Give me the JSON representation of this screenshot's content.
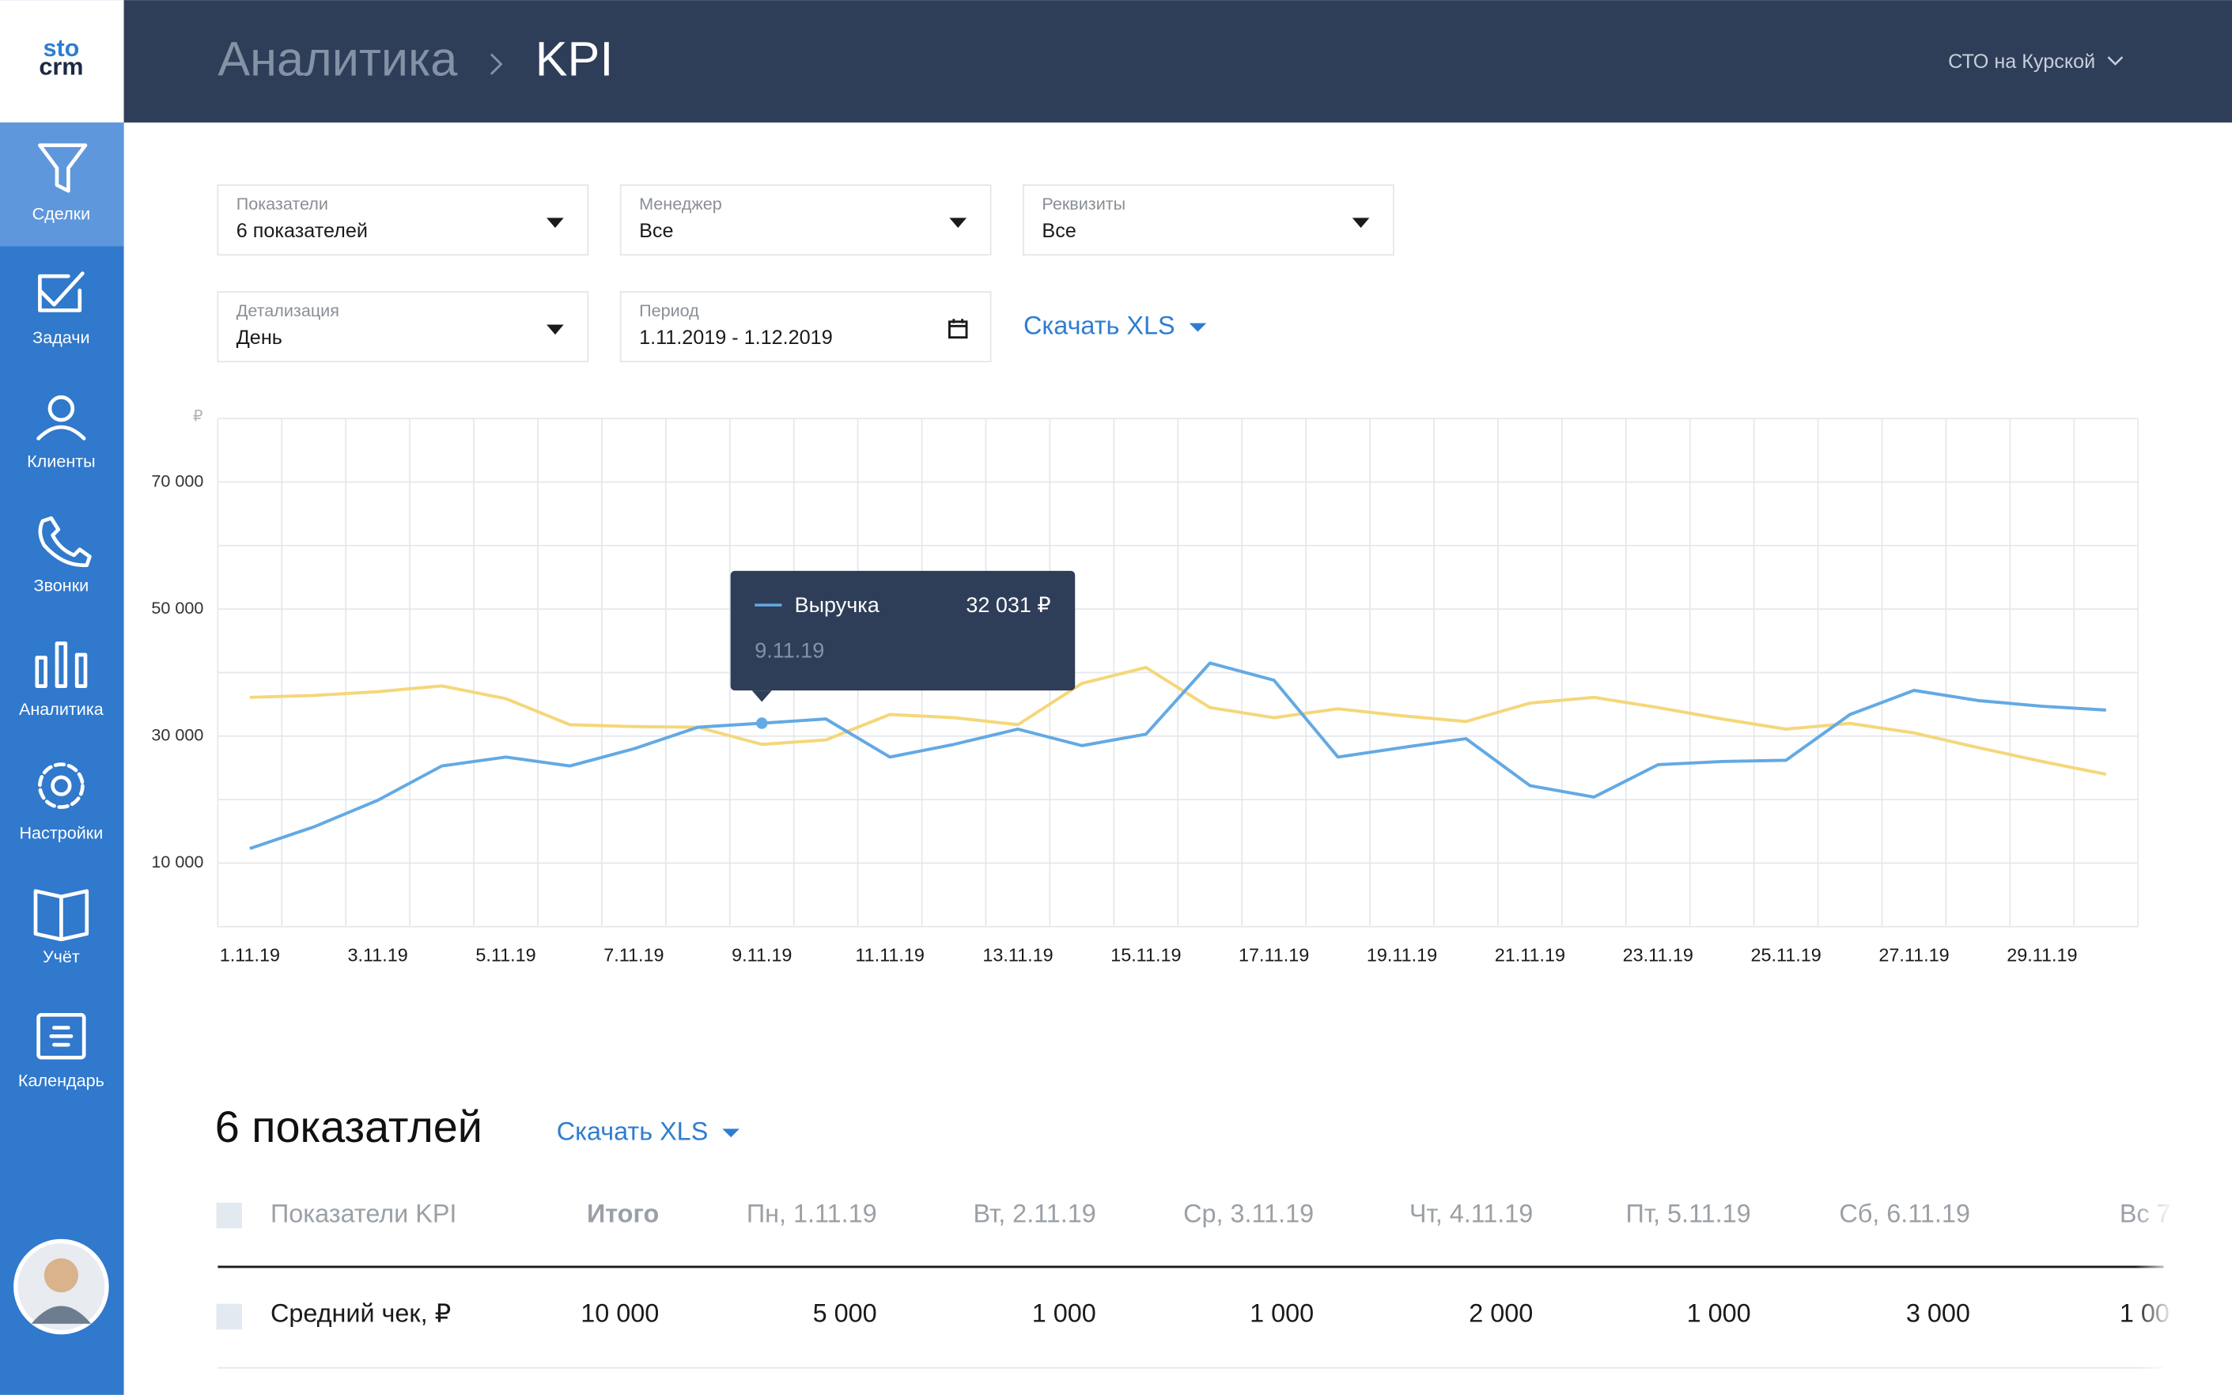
{
  "logo": {
    "line1": "sto",
    "line2": "crm"
  },
  "nav": [
    "Сделки",
    "Задачи",
    "Клиенты",
    "Звонки",
    "Аналитика",
    "Настройки",
    "Учёт",
    "Календарь"
  ],
  "header": {
    "breadcrumb": "Аналитика",
    "title": "KPI",
    "company": "СТО на Курской"
  },
  "filters": [
    {
      "label": "Показатели",
      "value": "6 показателей"
    },
    {
      "label": "Менеджер",
      "value": "Все"
    },
    {
      "label": "Реквизиты",
      "value": "Все"
    },
    {
      "label": "Детализация",
      "value": "День"
    },
    {
      "label": "Период",
      "value": "1.11.2019 - 1.12.2019"
    }
  ],
  "download": "Скачать XLS",
  "chart_data": {
    "type": "line",
    "y_unit": "₽",
    "categories": [
      "1.11.19",
      null,
      "3.11.19",
      null,
      "5.11.19",
      null,
      "7.11.19",
      null,
      "9.11.19",
      null,
      "11.11.19",
      null,
      "13.11.19",
      null,
      "15.11.19",
      null,
      "17.11.19",
      null,
      "19.11.19",
      null,
      "21.11.19",
      null,
      "23.11.19",
      null,
      "25.11.19",
      null,
      "27.11.19",
      null,
      "29.11.19",
      null
    ],
    "series": [
      {
        "name": "Выручка",
        "color": "#63a9e4",
        "values": [
          12300,
          15700,
          19900,
          25300,
          26700,
          25300,
          28000,
          31400,
          32031,
          32700,
          26700,
          28700,
          31100,
          28500,
          30300,
          41500,
          38800,
          26700,
          28200,
          29600,
          22200,
          20400,
          25500,
          26000,
          26200,
          33400,
          37200,
          35600,
          34700,
          34100
        ]
      },
      {
        "color": "#f4d77a",
        "values": [
          36100,
          36400,
          37000,
          37900,
          35900,
          31800,
          31500,
          31400,
          28700,
          29400,
          33400,
          32900,
          31800,
          38300,
          40800,
          34500,
          32900,
          34300,
          33200,
          32300,
          35200,
          36100,
          34500,
          32700,
          31100,
          32000,
          30500,
          28200,
          26000,
          24000
        ]
      }
    ],
    "ylim": [
      0,
      80000
    ],
    "yticks": [
      {
        "value": 10000,
        "label": "10 000"
      },
      {
        "value": 30000,
        "label": "30 000"
      },
      {
        "value": 50000,
        "label": "50 000"
      },
      {
        "value": 70000,
        "label": "70 000"
      }
    ],
    "grid": true,
    "tooltip": {
      "value_label": "32 031 ₽",
      "date": "9.11.19"
    }
  },
  "section_title": "6 показатлей",
  "table": {
    "header": [
      "Показатели KPI",
      "Итого",
      "Пн, 1.11.19",
      "Вт, 2.11.19",
      "Ср, 3.11.19",
      "Чт, 4.11.19",
      "Пт, 5.11.19",
      "Сб, 6.11.19",
      "Вс 7"
    ],
    "rows": [
      [
        "Средний чек, ₽",
        "10 000",
        "5 000",
        "1 000",
        "1 000",
        "2 000",
        "1 000",
        "3 000",
        "1 00"
      ]
    ]
  }
}
